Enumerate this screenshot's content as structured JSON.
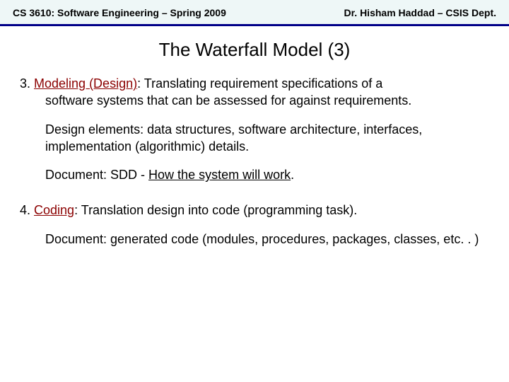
{
  "header": {
    "left": "CS 3610: Software Engineering – Spring 2009",
    "right": "Dr. Hisham Haddad – CSIS Dept."
  },
  "title": "The Waterfall Model  (3)",
  "item3": {
    "num": "3. ",
    "heading": "Modeling (Design)",
    "desc_line1": ": Translating requirement specifications of a",
    "desc_line2": "software systems that can be assessed for against requirements.",
    "elements": "Design elements: data structures, software architecture, interfaces, implementation (algorithmic) details.",
    "doc_prefix": "Document: SDD - ",
    "doc_underline": "How the system will work",
    "doc_suffix": "."
  },
  "item4": {
    "num": "4. ",
    "heading": "Coding",
    "desc": ": Translation design into code (programming task).",
    "doc": "Document: generated code (modules, procedures, packages, classes, etc. . )"
  },
  "colors": {
    "header_bg": "#eef7f7",
    "rule": "#000088",
    "heading_red": "#8b0000",
    "text": "#000000",
    "bg": "#ffffff"
  }
}
